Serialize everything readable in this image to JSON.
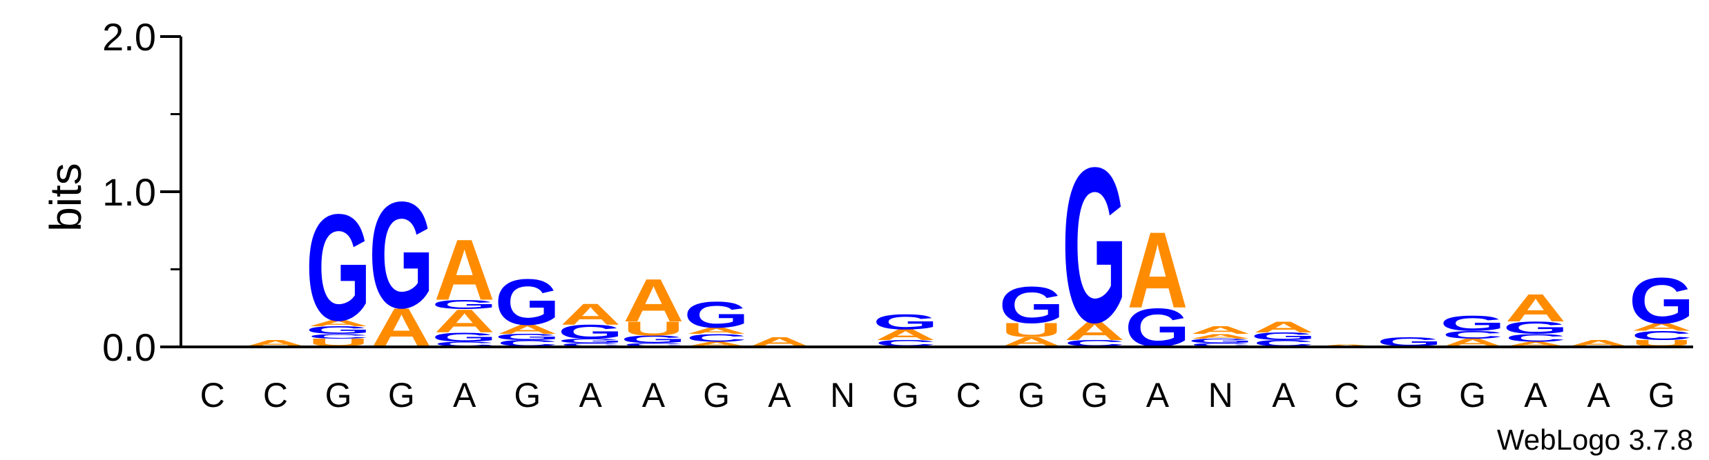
{
  "chart_data": {
    "type": "sequence-logo",
    "ylabel": "bits",
    "ylim": [
      0,
      2.0
    ],
    "yticks": [
      "0.0",
      "1.0",
      "2.0"
    ],
    "credit": "WebLogo 3.7.8",
    "colors": {
      "A": "#ff8c00",
      "U": "#ff8c00",
      "G": "#0000ff",
      "C": "#0000ff"
    },
    "positions": [
      {
        "label": "C",
        "stack": []
      },
      {
        "label": "C",
        "stack": [
          [
            "A",
            0.04
          ]
        ]
      },
      {
        "label": "G",
        "stack": [
          [
            "U",
            0.05
          ],
          [
            "C",
            0.03
          ],
          [
            "G",
            0.05
          ],
          [
            "A",
            0.04
          ],
          [
            "G",
            0.7
          ]
        ]
      },
      {
        "label": "G",
        "stack": [
          [
            "A",
            0.25
          ],
          [
            "G",
            0.7
          ]
        ]
      },
      {
        "label": "A",
        "stack": [
          [
            "C",
            0.03
          ],
          [
            "G",
            0.06
          ],
          [
            "A",
            0.15
          ],
          [
            "G",
            0.06
          ],
          [
            "A",
            0.4
          ]
        ]
      },
      {
        "label": "G",
        "stack": [
          [
            "C",
            0.04
          ],
          [
            "G",
            0.04
          ],
          [
            "A",
            0.06
          ],
          [
            "G",
            0.3
          ]
        ]
      },
      {
        "label": "A",
        "stack": [
          [
            "C",
            0.02
          ],
          [
            "G",
            0.03
          ],
          [
            "G",
            0.09
          ],
          [
            "A",
            0.14
          ]
        ]
      },
      {
        "label": "A",
        "stack": [
          [
            "C",
            0.02
          ],
          [
            "G",
            0.05
          ],
          [
            "U",
            0.09
          ],
          [
            "A",
            0.28
          ]
        ]
      },
      {
        "label": "G",
        "stack": [
          [
            "A",
            0.03
          ],
          [
            "C",
            0.05
          ],
          [
            "A",
            0.04
          ],
          [
            "G",
            0.17
          ]
        ]
      },
      {
        "label": "A",
        "stack": [
          [
            "A",
            0.06
          ]
        ]
      },
      {
        "label": "N",
        "stack": []
      },
      {
        "label": "G",
        "stack": [
          [
            "C",
            0.04
          ],
          [
            "A",
            0.07
          ],
          [
            "G",
            0.1
          ]
        ]
      },
      {
        "label": "C",
        "stack": []
      },
      {
        "label": "G",
        "stack": [
          [
            "A",
            0.06
          ],
          [
            "U",
            0.09
          ],
          [
            "G",
            0.24
          ]
        ]
      },
      {
        "label": "G",
        "stack": [
          [
            "C",
            0.04
          ],
          [
            "A",
            0.12
          ],
          [
            "G",
            1.02
          ]
        ]
      },
      {
        "label": "A",
        "stack": [
          [
            "G",
            0.25
          ],
          [
            "A",
            0.5
          ]
        ]
      },
      {
        "label": "N",
        "stack": [
          [
            "C",
            0.02
          ],
          [
            "G",
            0.03
          ],
          [
            "A",
            0.03
          ],
          [
            "A",
            0.05
          ]
        ]
      },
      {
        "label": "A",
        "stack": [
          [
            "C",
            0.04
          ],
          [
            "G",
            0.05
          ],
          [
            "A",
            0.07
          ]
        ]
      },
      {
        "label": "C",
        "stack": [
          [
            "A",
            0.01
          ]
        ]
      },
      {
        "label": "G",
        "stack": [
          [
            "G",
            0.06
          ]
        ]
      },
      {
        "label": "G",
        "stack": [
          [
            "A",
            0.05
          ],
          [
            "C",
            0.05
          ],
          [
            "G",
            0.1
          ]
        ]
      },
      {
        "label": "A",
        "stack": [
          [
            "A",
            0.03
          ],
          [
            "C",
            0.05
          ],
          [
            "G",
            0.08
          ],
          [
            "A",
            0.18
          ]
        ]
      },
      {
        "label": "A",
        "stack": [
          [
            "A",
            0.04
          ]
        ]
      },
      {
        "label": "G",
        "stack": [
          [
            "U",
            0.04
          ],
          [
            "C",
            0.06
          ],
          [
            "A",
            0.05
          ],
          [
            "G",
            0.3
          ]
        ]
      }
    ]
  }
}
